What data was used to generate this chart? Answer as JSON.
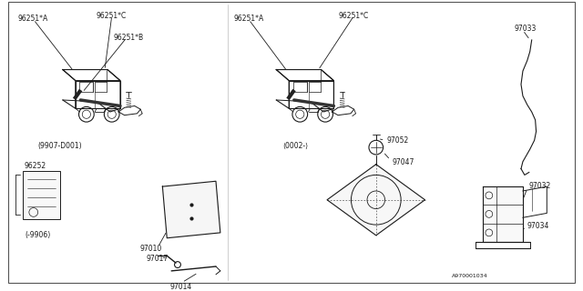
{
  "bg_color": "#ffffff",
  "line_color": "#1a1a1a",
  "text_color": "#1a1a1a",
  "font_size": 5.5,
  "ref_label": "A970001034",
  "left_car_labels": [
    "96251*A",
    "96251*C",
    "96251*B"
  ],
  "left_car_date": "(9907-D001)",
  "right_car_labels": [
    "96251*A",
    "96251*C"
  ],
  "right_car_date": "<0002->",
  "hook_label": "97033",
  "bag_label": "96252",
  "bag_date": "<-9906>",
  "tool_labels": [
    "97010",
    "97017",
    "97014"
  ],
  "jack_pan_labels": [
    "97052",
    "97047"
  ],
  "jack_stand_labels": [
    "97032",
    "97034"
  ]
}
